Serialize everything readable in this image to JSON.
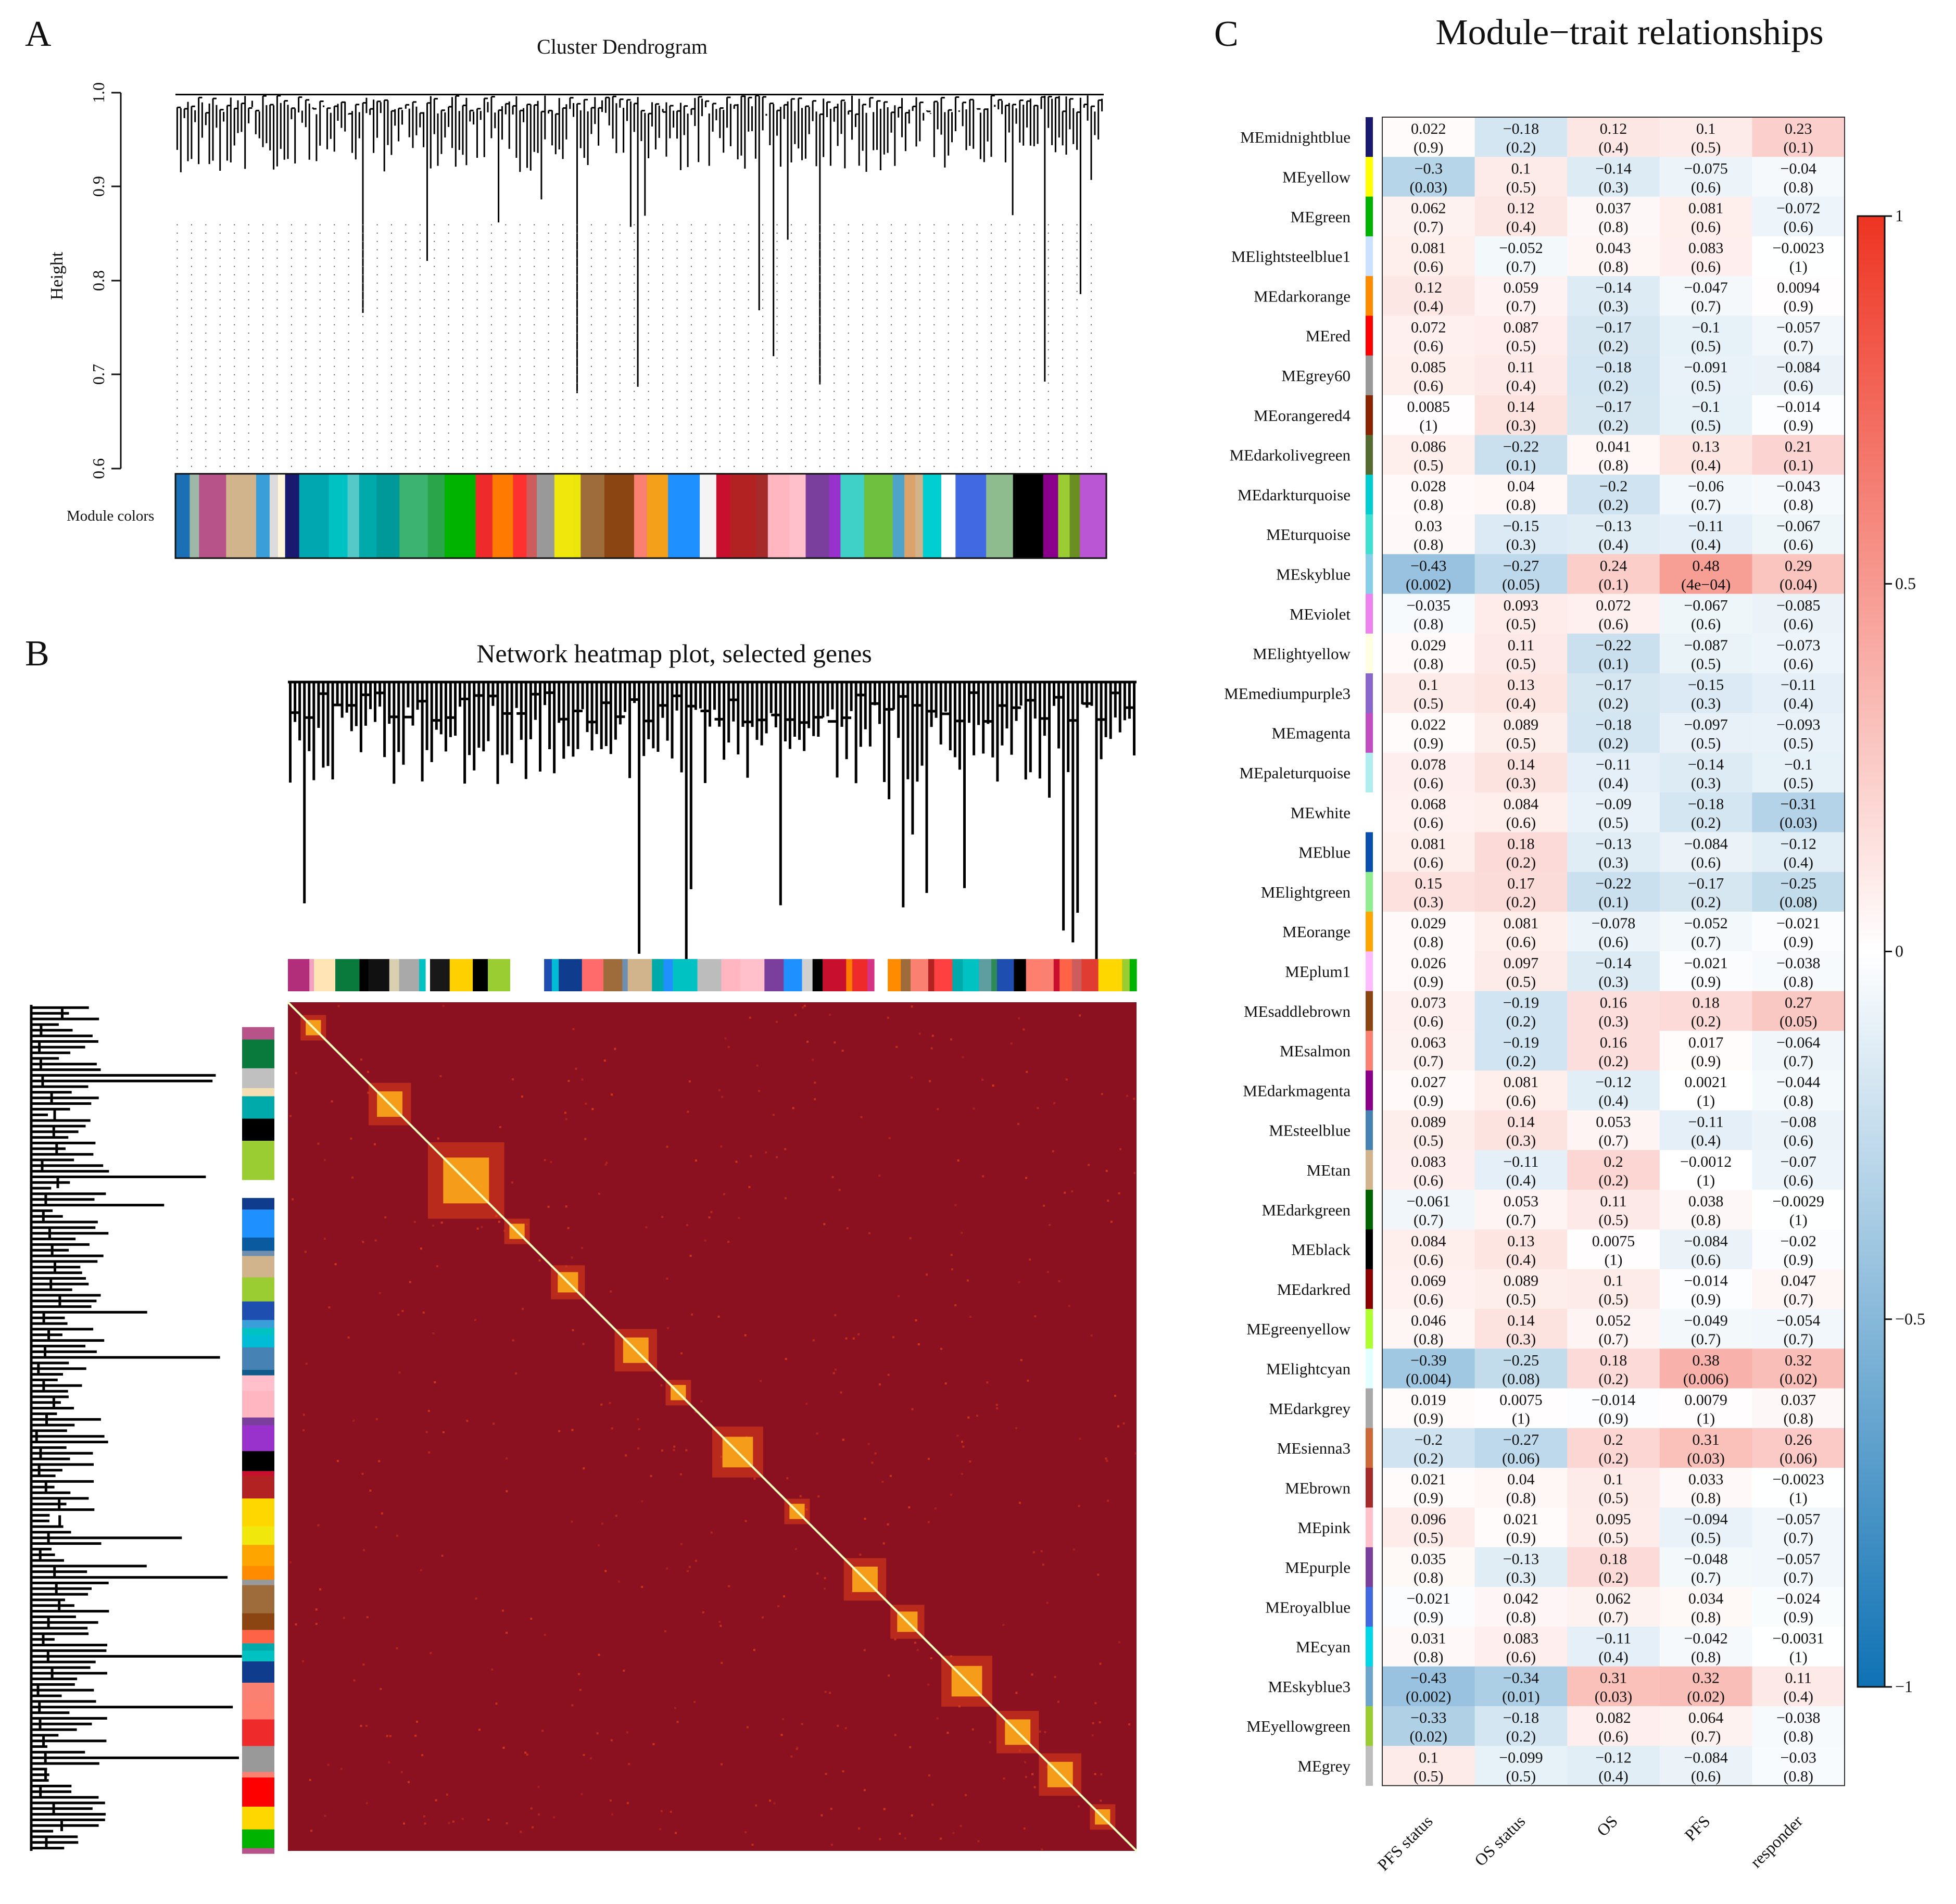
{
  "panels": {
    "a": {
      "letter": "A",
      "title": "Cluster Dendrogram",
      "ylabel": "Height",
      "yticks": [
        "1.0",
        "0.9",
        "0.8",
        "0.7",
        "0.6"
      ],
      "ylim": [
        0.6,
        1.0
      ],
      "colorbar_label": "Module colors"
    },
    "b": {
      "letter": "B",
      "title": "Network heatmap plot, selected genes"
    },
    "c": {
      "letter": "C",
      "title": "Module−trait relationships"
    }
  },
  "palette": {
    "heat_base": "#8c1120",
    "heat_mid": "#e0401a",
    "heat_hot": "#ffb21a",
    "heat_peak": "#ffffc0",
    "neg_full": "#0f72b4",
    "pos_full": "#ee3422",
    "zero": "#ffffff"
  },
  "module_colors": {
    "a": [
      "#1b6fb5",
      "#9fb7a6",
      "#b8538a",
      "#d2b48c",
      "#3a9fd9",
      "#dcdcdc",
      "#fff6dc",
      "#191970",
      "#00a6b0",
      "#00c2c2",
      "#55c8c8",
      "#00aaaa",
      "#009999",
      "#3cb371",
      "#2aa54a",
      "#00b300",
      "#ee2a2a",
      "#ff7a00",
      "#ff3030",
      "#cd5c5c",
      "#999999",
      "#f0e80c",
      "#ece60a",
      "#9e6b3a",
      "#8b4513",
      "#fa8072",
      "#f4a01a",
      "#1e90ff",
      "#f4f4f4",
      "#c8102e",
      "#b22222",
      "#a52a2a",
      "#ffb6c1",
      "#ffc0cb",
      "#7a3e9d",
      "#9932cc",
      "#3fd1c8",
      "#70c040",
      "#4fa3c9",
      "#d9a36b",
      "#d2b48c",
      "#00ced1",
      "#ffffff",
      "#4169e1",
      "#8fbc8f",
      "#000000",
      "#8b008b",
      "#9acd32",
      "#6b8e23",
      "#ba55d3"
    ],
    "b_top": [
      "#b22d7a",
      "#f2a1c0",
      "#ffe4b5",
      "#0a7a3c",
      "#000000",
      "#111111",
      "#d8d0b0",
      "#a9a9a9",
      "#00c2c2",
      "#ffffff",
      "#181818",
      "#ffd000",
      "#000000",
      "#9acd32",
      "#ffffff",
      "#ffffff",
      "#1e4fb0",
      "#00bcd4",
      "#0f3c8c",
      "#ff6a6a",
      "#9e6b3a",
      "#6f8fb0",
      "#d2b48c",
      "#00aaaa",
      "#1e90ff",
      "#00c2c2",
      "#bcbcbc",
      "#ffb6c1",
      "#ffc0cb",
      "#7a3e9d",
      "#1e90ff",
      "#d0d0d0",
      "#000000",
      "#c8102e",
      "#ff7a00",
      "#ee2a2a",
      "#d63384",
      "#ffffff",
      "#ff8c00",
      "#9e6b3a",
      "#fa8072",
      "#b22222",
      "#ff4040",
      "#00aaaa",
      "#00c2c2",
      "#5f9ea0",
      "#2e8b57",
      "#1e4fb0",
      "#000000",
      "#ff7f6e",
      "#fa8072",
      "#c8102e",
      "#ff6347",
      "#cd5c5c",
      "#e03c31",
      "#ffd700",
      "#9acd32",
      "#00b300"
    ],
    "b_side": [
      "#ffffff",
      "#b8538a",
      "#0a7a3c",
      "#c0c0c0",
      "#f5deb3",
      "#00aaaa",
      "#000000",
      "#9acd32",
      "#9acd32",
      "#ffffff",
      "#0f3c8c",
      "#1e90ff",
      "#0a5aa0",
      "#6f8fb0",
      "#d2b48c",
      "#9acd32",
      "#1e4fb0",
      "#3a9fd9",
      "#00c2c2",
      "#00bcd4",
      "#4682b4",
      "#0f5c8c",
      "#ffc0cb",
      "#ffb6c1",
      "#7a3e9d",
      "#9932cc",
      "#000000",
      "#c8102e",
      "#b22222",
      "#ffd700",
      "#f0e80c",
      "#ffa500",
      "#ff8c00",
      "#999999",
      "#9e6b3a",
      "#8b4513",
      "#ff6347",
      "#00aaaa",
      "#00c2c2",
      "#0f3c8c",
      "#fa8072",
      "#ff7f6e",
      "#ee2a2a",
      "#999999",
      "#fa8072",
      "#ff0000",
      "#ffd700",
      "#00b300",
      "#00b300",
      "#b8538a"
    ]
  },
  "chart_data": [
    {
      "type": "line",
      "name": "Cluster Dendrogram",
      "title": "Cluster Dendrogram",
      "xlabel": "",
      "ylabel": "Height",
      "ylim": [
        0.6,
        1.0
      ],
      "yticks": [
        0.6,
        0.7,
        0.8,
        0.9,
        1.0
      ],
      "note": "hierarchical clustering tree of genes; module color bar below"
    },
    {
      "type": "heatmap",
      "name": "Network heatmap plot, selected genes",
      "title": "Network heatmap plot, selected genes",
      "note": "topological overlap matrix; dark red background with bright diagonal and module blocks"
    },
    {
      "type": "heatmap",
      "name": "Module-trait relationships",
      "title": "Module−trait relationships",
      "columns": [
        "PFS status",
        "OS status",
        "OS",
        "PFS",
        "responder"
      ],
      "colorbar": {
        "min": -1,
        "max": 1,
        "ticks": [
          "1",
          "0.5",
          "0",
          "−0.5",
          "−1"
        ]
      },
      "rows": [
        {
          "module": "MEmidnightblue",
          "color": "#191970",
          "r": [
            "0.022",
            "−0.18",
            "0.12",
            "0.1",
            "0.23"
          ],
          "p": [
            "(0.9)",
            "(0.2)",
            "(0.4)",
            "(0.5)",
            "(0.1)"
          ]
        },
        {
          "module": "MEyellow",
          "color": "#ffff00",
          "r": [
            "−0.3",
            "0.1",
            "−0.14",
            "−0.075",
            "−0.04"
          ],
          "p": [
            "(0.03)",
            "(0.5)",
            "(0.3)",
            "(0.6)",
            "(0.8)"
          ]
        },
        {
          "module": "MEgreen",
          "color": "#00b300",
          "r": [
            "0.062",
            "0.12",
            "0.037",
            "0.081",
            "−0.072"
          ],
          "p": [
            "(0.7)",
            "(0.4)",
            "(0.8)",
            "(0.6)",
            "(0.6)"
          ]
        },
        {
          "module": "MElightsteelblue1",
          "color": "#cae1ff",
          "r": [
            "0.081",
            "−0.052",
            "0.043",
            "0.083",
            "−0.0023"
          ],
          "p": [
            "(0.6)",
            "(0.7)",
            "(0.8)",
            "(0.6)",
            "(1)"
          ]
        },
        {
          "module": "MEdarkorange",
          "color": "#ff8c00",
          "r": [
            "0.12",
            "0.059",
            "−0.14",
            "−0.047",
            "0.0094"
          ],
          "p": [
            "(0.4)",
            "(0.7)",
            "(0.3)",
            "(0.7)",
            "(0.9)"
          ]
        },
        {
          "module": "MEred",
          "color": "#ff0000",
          "r": [
            "0.072",
            "0.087",
            "−0.17",
            "−0.1",
            "−0.057"
          ],
          "p": [
            "(0.6)",
            "(0.5)",
            "(0.2)",
            "(0.5)",
            "(0.7)"
          ]
        },
        {
          "module": "MEgrey60",
          "color": "#999999",
          "r": [
            "0.085",
            "0.11",
            "−0.18",
            "−0.091",
            "−0.084"
          ],
          "p": [
            "(0.6)",
            "(0.4)",
            "(0.2)",
            "(0.5)",
            "(0.6)"
          ]
        },
        {
          "module": "MEorangered4",
          "color": "#8b2500",
          "r": [
            "0.0085",
            "0.14",
            "−0.17",
            "−0.1",
            "−0.014"
          ],
          "p": [
            "(1)",
            "(0.3)",
            "(0.2)",
            "(0.5)",
            "(0.9)"
          ]
        },
        {
          "module": "MEdarkolivegreen",
          "color": "#556b2f",
          "r": [
            "0.086",
            "−0.22",
            "0.041",
            "0.13",
            "0.21"
          ],
          "p": [
            "(0.5)",
            "(0.1)",
            "(0.8)",
            "(0.4)",
            "(0.1)"
          ]
        },
        {
          "module": "MEdarkturquoise",
          "color": "#00ced1",
          "r": [
            "0.028",
            "0.04",
            "−0.2",
            "−0.06",
            "−0.043"
          ],
          "p": [
            "(0.8)",
            "(0.8)",
            "(0.2)",
            "(0.7)",
            "(0.8)"
          ]
        },
        {
          "module": "MEturquoise",
          "color": "#40e0d0",
          "r": [
            "0.03",
            "−0.15",
            "−0.13",
            "−0.11",
            "−0.067"
          ],
          "p": [
            "(0.8)",
            "(0.3)",
            "(0.4)",
            "(0.4)",
            "(0.6)"
          ]
        },
        {
          "module": "MEskyblue",
          "color": "#87ceeb",
          "r": [
            "−0.43",
            "−0.27",
            "0.24",
            "0.48",
            "0.29"
          ],
          "p": [
            "(0.002)",
            "(0.05)",
            "(0.1)",
            "(4e−04)",
            "(0.04)"
          ]
        },
        {
          "module": "MEviolet",
          "color": "#ee82ee",
          "r": [
            "−0.035",
            "0.093",
            "0.072",
            "−0.067",
            "−0.085"
          ],
          "p": [
            "(0.8)",
            "(0.5)",
            "(0.6)",
            "(0.6)",
            "(0.6)"
          ]
        },
        {
          "module": "MElightyellow",
          "color": "#ffffe0",
          "r": [
            "0.029",
            "0.11",
            "−0.22",
            "−0.087",
            "−0.073"
          ],
          "p": [
            "(0.8)",
            "(0.5)",
            "(0.1)",
            "(0.5)",
            "(0.6)"
          ]
        },
        {
          "module": "MEmediumpurple3",
          "color": "#8968cd",
          "r": [
            "0.1",
            "0.13",
            "−0.17",
            "−0.15",
            "−0.11"
          ],
          "p": [
            "(0.5)",
            "(0.4)",
            "(0.2)",
            "(0.3)",
            "(0.4)"
          ]
        },
        {
          "module": "MEmagenta",
          "color": "#c34cc3",
          "r": [
            "0.022",
            "0.089",
            "−0.18",
            "−0.097",
            "−0.093"
          ],
          "p": [
            "(0.9)",
            "(0.5)",
            "(0.2)",
            "(0.5)",
            "(0.5)"
          ]
        },
        {
          "module": "MEpaleturquoise",
          "color": "#afeeee",
          "r": [
            "0.078",
            "0.14",
            "−0.11",
            "−0.14",
            "−0.1"
          ],
          "p": [
            "(0.6)",
            "(0.3)",
            "(0.4)",
            "(0.3)",
            "(0.5)"
          ]
        },
        {
          "module": "MEwhite",
          "color": "#ffffff",
          "r": [
            "0.068",
            "0.084",
            "−0.09",
            "−0.18",
            "−0.31"
          ],
          "p": [
            "(0.6)",
            "(0.6)",
            "(0.5)",
            "(0.2)",
            "(0.03)"
          ]
        },
        {
          "module": "MEblue",
          "color": "#0a4fb0",
          "r": [
            "0.081",
            "0.18",
            "−0.13",
            "−0.084",
            "−0.12"
          ],
          "p": [
            "(0.6)",
            "(0.2)",
            "(0.3)",
            "(0.6)",
            "(0.4)"
          ]
        },
        {
          "module": "MElightgreen",
          "color": "#90ee90",
          "r": [
            "0.15",
            "0.17",
            "−0.22",
            "−0.17",
            "−0.25"
          ],
          "p": [
            "(0.3)",
            "(0.2)",
            "(0.1)",
            "(0.2)",
            "(0.08)"
          ]
        },
        {
          "module": "MEorange",
          "color": "#ffa500",
          "r": [
            "0.029",
            "0.081",
            "−0.078",
            "−0.052",
            "−0.021"
          ],
          "p": [
            "(0.8)",
            "(0.6)",
            "(0.6)",
            "(0.7)",
            "(0.9)"
          ]
        },
        {
          "module": "MEplum1",
          "color": "#ffbbff",
          "r": [
            "0.026",
            "0.097",
            "−0.14",
            "−0.021",
            "−0.038"
          ],
          "p": [
            "(0.9)",
            "(0.5)",
            "(0.3)",
            "(0.9)",
            "(0.8)"
          ]
        },
        {
          "module": "MEsaddlebrown",
          "color": "#8b4513",
          "r": [
            "0.073",
            "−0.19",
            "0.16",
            "0.18",
            "0.27"
          ],
          "p": [
            "(0.6)",
            "(0.2)",
            "(0.3)",
            "(0.2)",
            "(0.05)"
          ]
        },
        {
          "module": "MEsalmon",
          "color": "#fa8072",
          "r": [
            "0.063",
            "−0.19",
            "0.16",
            "0.017",
            "−0.064"
          ],
          "p": [
            "(0.7)",
            "(0.2)",
            "(0.2)",
            "(0.9)",
            "(0.7)"
          ]
        },
        {
          "module": "MEdarkmagenta",
          "color": "#8b008b",
          "r": [
            "0.027",
            "0.081",
            "−0.12",
            "0.0021",
            "−0.044"
          ],
          "p": [
            "(0.9)",
            "(0.6)",
            "(0.4)",
            "(1)",
            "(0.8)"
          ]
        },
        {
          "module": "MEsteelblue",
          "color": "#4682b4",
          "r": [
            "0.089",
            "0.14",
            "0.053",
            "−0.11",
            "−0.08"
          ],
          "p": [
            "(0.5)",
            "(0.3)",
            "(0.7)",
            "(0.4)",
            "(0.6)"
          ]
        },
        {
          "module": "MEtan",
          "color": "#d2b48c",
          "r": [
            "0.083",
            "−0.11",
            "0.2",
            "−0.0012",
            "−0.07"
          ],
          "p": [
            "(0.6)",
            "(0.4)",
            "(0.2)",
            "(1)",
            "(0.6)"
          ]
        },
        {
          "module": "MEdarkgreen",
          "color": "#006400",
          "r": [
            "−0.061",
            "0.053",
            "0.11",
            "0.038",
            "−0.0029"
          ],
          "p": [
            "(0.7)",
            "(0.7)",
            "(0.5)",
            "(0.8)",
            "(1)"
          ]
        },
        {
          "module": "MEblack",
          "color": "#000000",
          "r": [
            "0.084",
            "0.13",
            "0.0075",
            "−0.084",
            "−0.02"
          ],
          "p": [
            "(0.6)",
            "(0.4)",
            "(1)",
            "(0.6)",
            "(0.9)"
          ]
        },
        {
          "module": "MEdarkred",
          "color": "#8b0000",
          "r": [
            "0.069",
            "0.089",
            "0.1",
            "−0.014",
            "0.047"
          ],
          "p": [
            "(0.6)",
            "(0.5)",
            "(0.5)",
            "(0.9)",
            "(0.7)"
          ]
        },
        {
          "module": "MEgreenyellow",
          "color": "#adff2f",
          "r": [
            "0.046",
            "0.14",
            "0.052",
            "−0.049",
            "−0.054"
          ],
          "p": [
            "(0.8)",
            "(0.3)",
            "(0.7)",
            "(0.7)",
            "(0.7)"
          ]
        },
        {
          "module": "MElightcyan",
          "color": "#e0ffff",
          "r": [
            "−0.39",
            "−0.25",
            "0.18",
            "0.38",
            "0.32"
          ],
          "p": [
            "(0.004)",
            "(0.08)",
            "(0.2)",
            "(0.006)",
            "(0.02)"
          ]
        },
        {
          "module": "MEdarkgrey",
          "color": "#a9a9a9",
          "r": [
            "0.019",
            "0.0075",
            "−0.014",
            "0.0079",
            "0.037"
          ],
          "p": [
            "(0.9)",
            "(1)",
            "(0.9)",
            "(1)",
            "(0.8)"
          ]
        },
        {
          "module": "MEsienna3",
          "color": "#cd6839",
          "r": [
            "−0.2",
            "−0.27",
            "0.2",
            "0.31",
            "0.26"
          ],
          "p": [
            "(0.2)",
            "(0.06)",
            "(0.2)",
            "(0.03)",
            "(0.06)"
          ]
        },
        {
          "module": "MEbrown",
          "color": "#a52a2a",
          "r": [
            "0.021",
            "0.04",
            "0.1",
            "0.033",
            "−0.0023"
          ],
          "p": [
            "(0.9)",
            "(0.8)",
            "(0.5)",
            "(0.8)",
            "(1)"
          ]
        },
        {
          "module": "MEpink",
          "color": "#ffc0cb",
          "r": [
            "0.096",
            "0.021",
            "0.095",
            "−0.094",
            "−0.057"
          ],
          "p": [
            "(0.5)",
            "(0.9)",
            "(0.5)",
            "(0.5)",
            "(0.7)"
          ]
        },
        {
          "module": "MEpurple",
          "color": "#7a3e9d",
          "r": [
            "0.035",
            "−0.13",
            "0.18",
            "−0.048",
            "−0.057"
          ],
          "p": [
            "(0.8)",
            "(0.3)",
            "(0.2)",
            "(0.7)",
            "(0.7)"
          ]
        },
        {
          "module": "MEroyalblue",
          "color": "#4169e1",
          "r": [
            "−0.021",
            "0.042",
            "0.062",
            "0.034",
            "−0.024"
          ],
          "p": [
            "(0.9)",
            "(0.8)",
            "(0.7)",
            "(0.8)",
            "(0.9)"
          ]
        },
        {
          "module": "MEcyan",
          "color": "#00d8e8",
          "r": [
            "0.031",
            "0.083",
            "−0.11",
            "−0.042",
            "−0.0031"
          ],
          "p": [
            "(0.8)",
            "(0.6)",
            "(0.4)",
            "(0.8)",
            "(1)"
          ]
        },
        {
          "module": "MEskyblue3",
          "color": "#6ca6cd",
          "r": [
            "−0.43",
            "−0.34",
            "0.31",
            "0.32",
            "0.11"
          ],
          "p": [
            "(0.002)",
            "(0.01)",
            "(0.03)",
            "(0.02)",
            "(0.4)"
          ]
        },
        {
          "module": "MEyellowgreen",
          "color": "#9acd32",
          "r": [
            "−0.33",
            "−0.18",
            "0.082",
            "0.064",
            "−0.038"
          ],
          "p": [
            "(0.02)",
            "(0.2)",
            "(0.6)",
            "(0.7)",
            "(0.8)"
          ]
        },
        {
          "module": "MEgrey",
          "color": "#bebebe",
          "r": [
            "0.1",
            "−0.099",
            "−0.12",
            "−0.084",
            "−0.03"
          ],
          "p": [
            "(0.5)",
            "(0.5)",
            "(0.4)",
            "(0.6)",
            "(0.8)"
          ]
        }
      ]
    }
  ]
}
